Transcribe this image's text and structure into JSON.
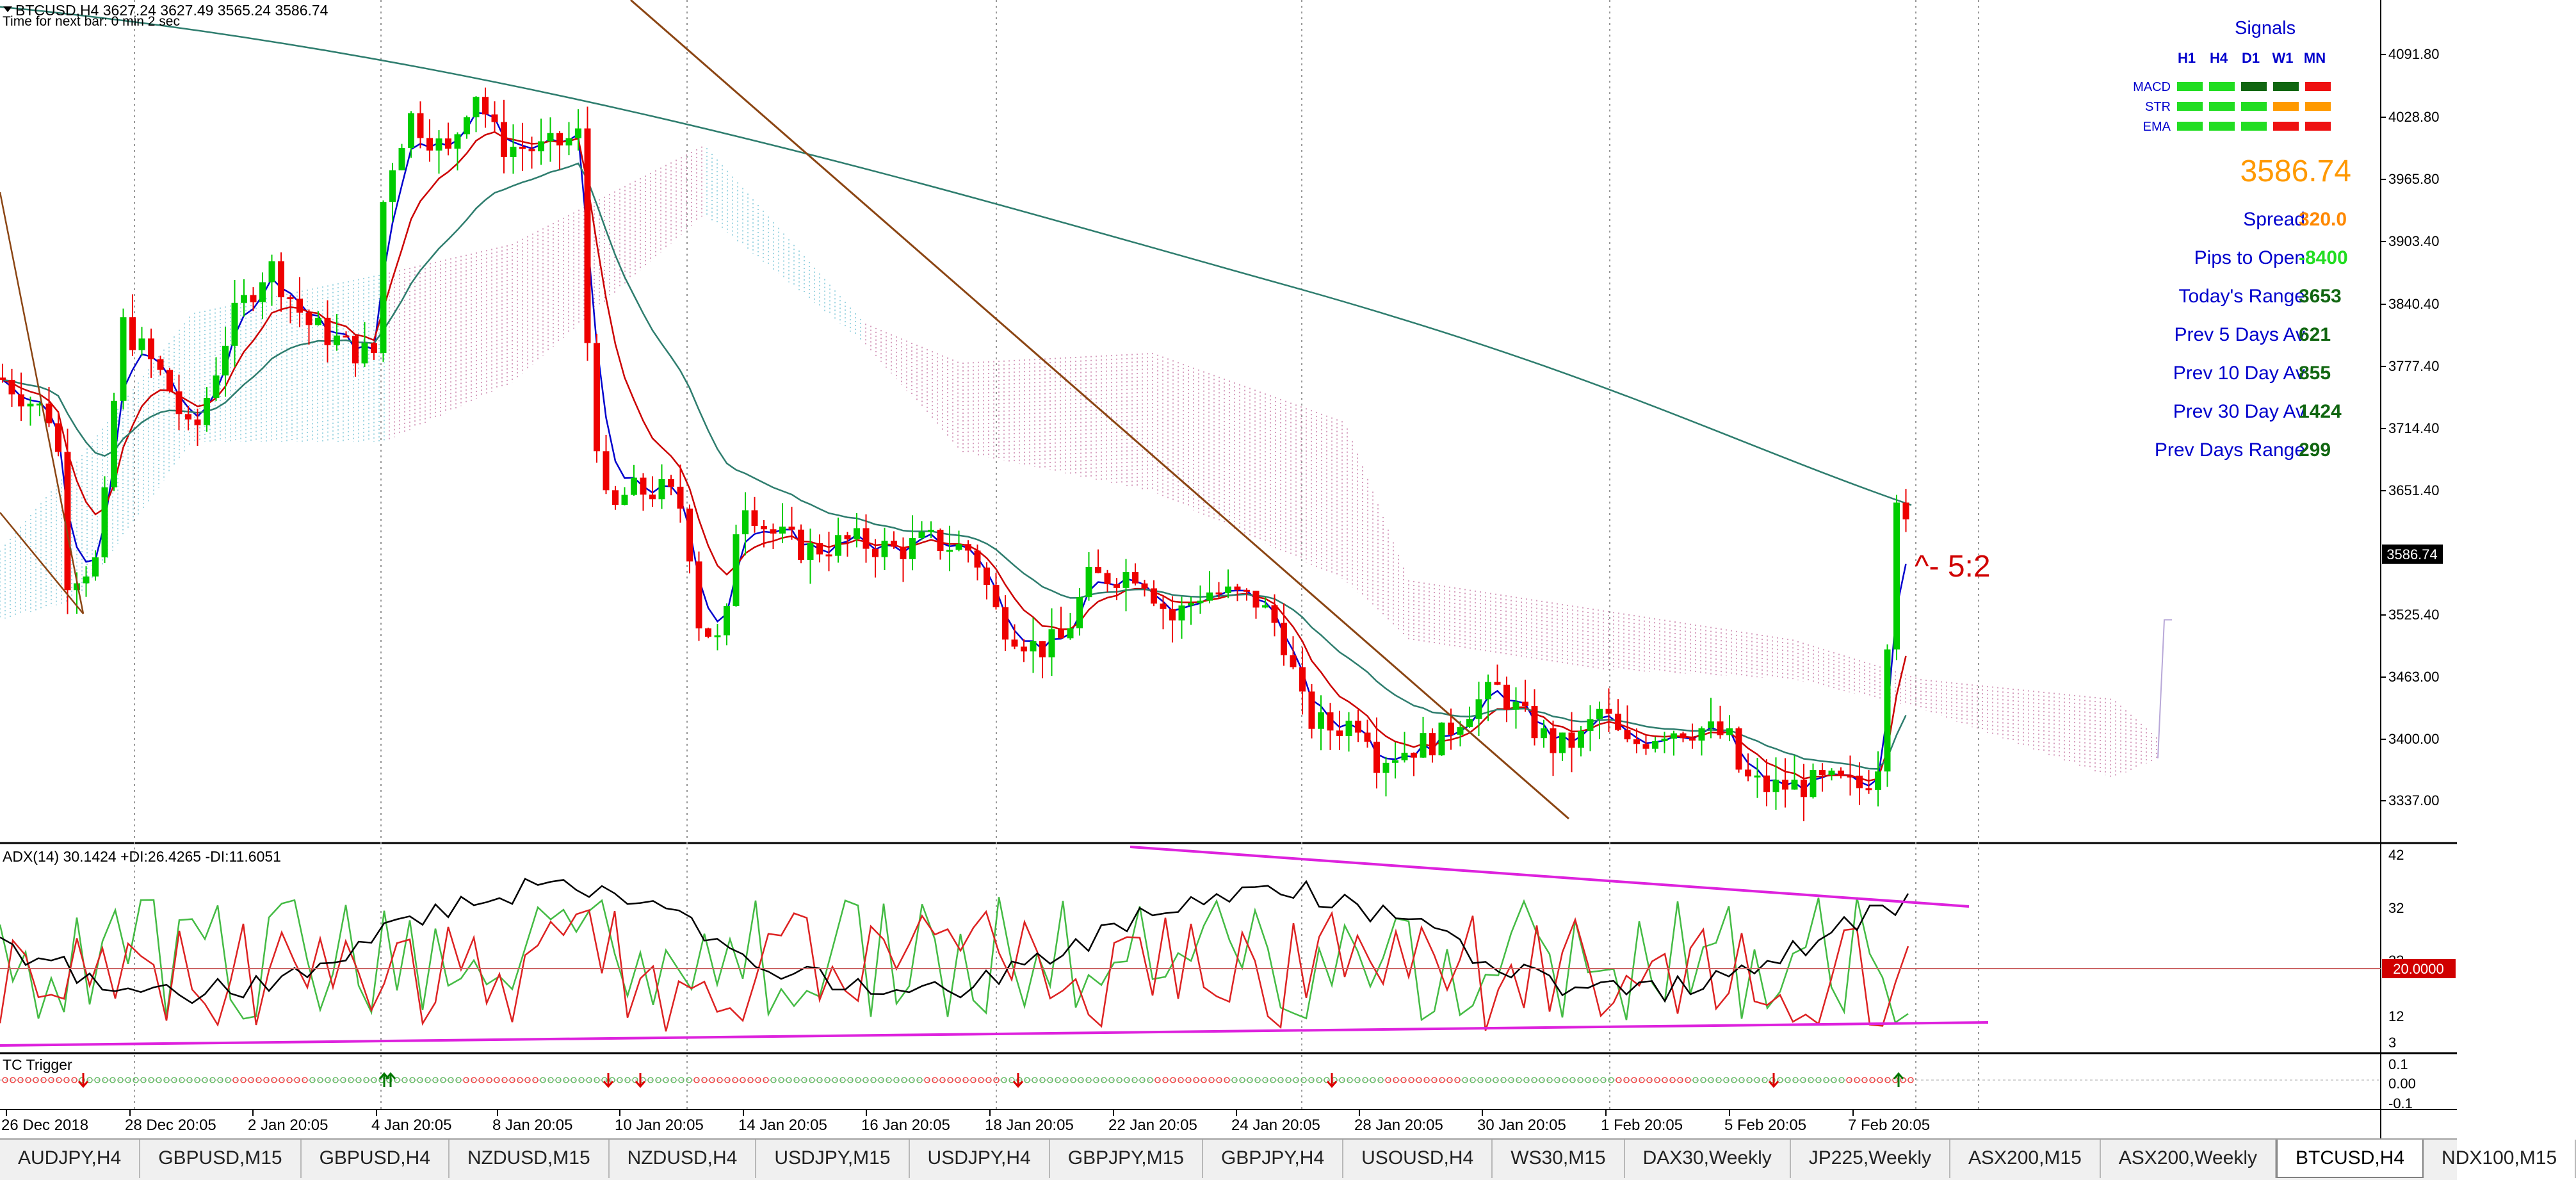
{
  "symbol_header": "BTCUSD,H4  3627.24 3627.49 3565.24 3586.74",
  "timer_text": "Time for next bar: 0 min 2 sec",
  "current_price_label": "3586.74",
  "annotation": "^- 5:2",
  "signals": {
    "title": "Signals",
    "timeframes": [
      "H1",
      "H4",
      "D1",
      "W1",
      "MN"
    ],
    "rows": [
      {
        "label": "MACD",
        "colors": [
          "#22dd22",
          "#22dd22",
          "#116611",
          "#116611",
          "#ee1111"
        ]
      },
      {
        "label": "STR",
        "colors": [
          "#22dd22",
          "#22dd22",
          "#22dd22",
          "#ff9900",
          "#ff9900"
        ]
      },
      {
        "label": "EMA",
        "colors": [
          "#22dd22",
          "#22dd22",
          "#22dd22",
          "#ee1111",
          "#ee1111"
        ]
      }
    ],
    "price": "3586.74"
  },
  "stats": [
    {
      "label": "Spread",
      "value": "320.0",
      "value_color": "#ff8800"
    },
    {
      "label": "Pips to Open",
      "value": "-8400",
      "value_color": "#22dd22"
    },
    {
      "label": "Today's Range",
      "value": "3653",
      "value_color": "#116611"
    },
    {
      "label": "Prev 5 Days Av",
      "value": "621",
      "value_color": "#116611"
    },
    {
      "label": "Prev 10 Day Av",
      "value": "855",
      "value_color": "#116611"
    },
    {
      "label": "Prev 30 Day Av",
      "value": "1424",
      "value_color": "#116611"
    },
    {
      "label": "Prev Days Range",
      "value": "299",
      "value_color": "#116611"
    }
  ],
  "price_axis": [
    "4091.80",
    "4028.80",
    "3965.80",
    "3903.40",
    "3840.40",
    "3777.40",
    "3714.40",
    "3651.40",
    "3525.40",
    "3463.00",
    "3400.00",
    "3337.00"
  ],
  "adx": {
    "label": "ADX(14) 30.1424 +DI:26.4265 -DI:11.6051",
    "axis": [
      "42",
      "32",
      "23",
      "12",
      "3"
    ],
    "level_label": "20.0000"
  },
  "tc": {
    "label": "TC Trigger",
    "axis": [
      "0.1",
      "0.00",
      "-0.1"
    ]
  },
  "time_axis": [
    "26 Dec 2018",
    "28 Dec 20:05",
    "2 Jan 20:05",
    "4 Jan 20:05",
    "8 Jan 20:05",
    "10 Jan 20:05",
    "14 Jan 20:05",
    "16 Jan 20:05",
    "18 Jan 20:05",
    "22 Jan 20:05",
    "24 Jan 20:05",
    "28 Jan 20:05",
    "30 Jan 20:05",
    "1 Feb 20:05",
    "5 Feb 20:05",
    "7 Feb 20:05"
  ],
  "tabs": [
    "AUDJPY,H4",
    "GBPUSD,M15",
    "GBPUSD,H4",
    "NZDUSD,M15",
    "NZDUSD,H4",
    "USDJPY,M15",
    "USDJPY,H4",
    "GBPJPY,M15",
    "GBPJPY,H4",
    "USOUSD,H4",
    "WS30,M15",
    "DAX30,Weekly",
    "JP225,Weekly",
    "ASX200,M15",
    "ASX200,Weekly",
    "BTCUSD,H4",
    "NDX100,M15"
  ],
  "active_tab": "BTCUSD,H4"
}
